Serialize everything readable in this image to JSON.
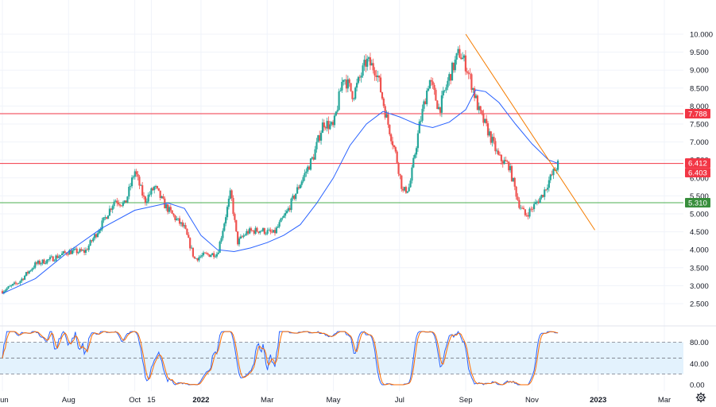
{
  "chart_data": [
    {
      "type": "candlestick",
      "price_axis": {
        "ylim": [
          2.3,
          10.1
        ],
        "ticks": [
          "10.000",
          "9.500",
          "9.000",
          "8.500",
          "8.000",
          "7.500",
          "7.000",
          "6.500",
          "6.000",
          "5.500",
          "5.000",
          "4.500",
          "4.000",
          "3.500",
          "3.000",
          "2.500"
        ]
      },
      "time_axis": {
        "labels": [
          {
            "text": "Jun",
            "t": 0
          },
          {
            "text": "Aug",
            "t": 2
          },
          {
            "text": "Oct",
            "t": 4
          },
          {
            "text": "15",
            "t": 4.5
          },
          {
            "text": "2022",
            "t": 6,
            "bold": true
          },
          {
            "text": "Mar",
            "t": 8
          },
          {
            "text": "May",
            "t": 10
          },
          {
            "text": "Jul",
            "t": 12
          },
          {
            "text": "Sep",
            "t": 14
          },
          {
            "text": "Nov",
            "t": 16
          },
          {
            "text": "2023",
            "t": 18,
            "bold": true
          },
          {
            "text": "Mar",
            "t": 20
          }
        ]
      },
      "close_path": [
        [
          0,
          2.85
        ],
        [
          0.5,
          3.1
        ],
        [
          1,
          3.6
        ],
        [
          1.5,
          3.75
        ],
        [
          2,
          3.95
        ],
        [
          2.5,
          3.95
        ],
        [
          3,
          4.7
        ],
        [
          3.4,
          5.4
        ],
        [
          3.7,
          5.25
        ],
        [
          4,
          6.2
        ],
        [
          4.3,
          5.35
        ],
        [
          4.6,
          5.75
        ],
        [
          4.9,
          5.25
        ],
        [
          5.2,
          4.9
        ],
        [
          5.5,
          4.6
        ],
        [
          5.8,
          3.75
        ],
        [
          6.1,
          3.85
        ],
        [
          6.5,
          3.9
        ],
        [
          6.9,
          5.6
        ],
        [
          7.1,
          4.2
        ],
        [
          7.4,
          4.5
        ],
        [
          7.8,
          4.55
        ],
        [
          8.2,
          4.45
        ],
        [
          8.6,
          5.05
        ],
        [
          9,
          5.85
        ],
        [
          9.4,
          6.6
        ],
        [
          9.7,
          7.55
        ],
        [
          10,
          7.4
        ],
        [
          10.3,
          8.85
        ],
        [
          10.6,
          8.3
        ],
        [
          11,
          9.25
        ],
        [
          11.3,
          9.0
        ],
        [
          11.6,
          7.7
        ],
        [
          11.9,
          6.6
        ],
        [
          12.1,
          5.6
        ],
        [
          12.3,
          5.75
        ],
        [
          12.6,
          7.45
        ],
        [
          12.9,
          8.75
        ],
        [
          13.2,
          7.9
        ],
        [
          13.5,
          8.8
        ],
        [
          13.8,
          9.5
        ],
        [
          14,
          9.15
        ],
        [
          14.2,
          8.55
        ],
        [
          14.4,
          7.85
        ],
        [
          14.7,
          7.25
        ],
        [
          15,
          6.55
        ],
        [
          15.3,
          6.35
        ],
        [
          15.6,
          5.3
        ],
        [
          15.8,
          4.95
        ],
        [
          16,
          5.15
        ],
        [
          16.3,
          5.5
        ],
        [
          16.5,
          5.9
        ],
        [
          16.8,
          6.4
        ]
      ],
      "moving_average": [
        [
          0,
          2.78
        ],
        [
          1,
          3.2
        ],
        [
          2,
          3.95
        ],
        [
          3,
          4.6
        ],
        [
          4,
          5.1
        ],
        [
          5,
          5.3
        ],
        [
          5.5,
          5.15
        ],
        [
          6,
          4.4
        ],
        [
          6.5,
          4.0
        ],
        [
          7,
          3.95
        ],
        [
          7.5,
          4.05
        ],
        [
          8,
          4.2
        ],
        [
          8.5,
          4.4
        ],
        [
          9,
          4.7
        ],
        [
          9.5,
          5.3
        ],
        [
          10,
          6.0
        ],
        [
          10.5,
          6.9
        ],
        [
          11,
          7.5
        ],
        [
          11.5,
          7.85
        ],
        [
          12,
          7.7
        ],
        [
          12.5,
          7.5
        ],
        [
          13,
          7.4
        ],
        [
          13.5,
          7.55
        ],
        [
          14,
          7.9
        ],
        [
          14.3,
          8.45
        ],
        [
          14.6,
          8.4
        ],
        [
          15,
          8.1
        ],
        [
          15.5,
          7.5
        ],
        [
          16,
          6.95
        ],
        [
          16.5,
          6.5
        ],
        [
          16.8,
          6.4
        ]
      ],
      "horizontal_levels": [
        {
          "value": 7.788,
          "label": "7.788",
          "color": "#f23645"
        },
        {
          "value": 6.403,
          "label": "6.403",
          "color": "#f23645"
        },
        {
          "value": 5.31,
          "label": "5.310",
          "color": "#4caf50"
        }
      ],
      "price_labels": [
        {
          "value": 6.412,
          "label": "6.412",
          "color": "#f23645"
        },
        {
          "value": 6.403,
          "label": "6.403",
          "color": "#f23645"
        },
        {
          "value": 7.788,
          "label": "7.788",
          "color": "#f23645"
        },
        {
          "value": 5.31,
          "label": "5.310",
          "color": "#388e3c"
        }
      ],
      "trendline": {
        "from": [
          14,
          10.0
        ],
        "to": [
          17.9,
          4.55
        ],
        "color": "#f57c00"
      },
      "colors": {
        "up": "#26a69a",
        "down": "#ef5350",
        "ma": "#2962ff",
        "grid": "#f0f3fa",
        "text": "#131722"
      }
    },
    {
      "type": "line",
      "name_hidden": true,
      "ylim": [
        -5,
        110
      ],
      "ticks": [
        "80.00",
        "40.00",
        "0.00"
      ],
      "bands": {
        "upper": 80,
        "mid": 50,
        "lower": 20
      },
      "colors": {
        "k": "#2962ff",
        "d": "#ff6d00",
        "band": "#e3f2fd"
      }
    }
  ],
  "icons": {
    "settings": "gear-icon"
  }
}
